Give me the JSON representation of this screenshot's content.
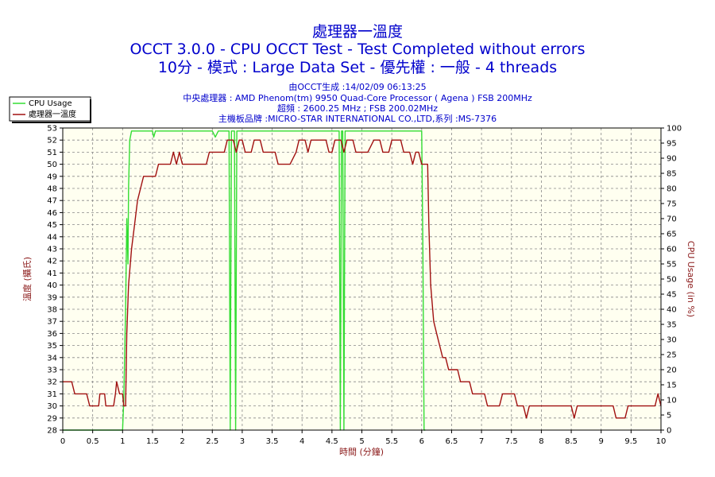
{
  "chart_data": {
    "type": "line",
    "title": "處理器一溫度",
    "subtitle_1": "OCCT 3.0.0 - CPU OCCT Test - Test Completed without errors",
    "subtitle_2": "10分 - 模式 : Large Data Set - 優先權 : 一般 - 4 threads",
    "info_lines": [
      "由OCCT生成 :14/02/09 06:13:25",
      "中央處理器 : AMD Phenom(tm) 9950 Quad-Core Processor ( Agena ) FSB 200MHz",
      "超頻 : 2600.25 MHz ; FSB 200.02MHz",
      "主機板品牌 :MICRO-STAR INTERNATIONAL CO.,LTD,系列 :MS-7376"
    ],
    "xlabel": "時間 (分鐘)",
    "ylabel_left": "溫度 (攝氏)",
    "ylabel_right": "CPU Usage (in %)",
    "xlim": [
      0,
      10
    ],
    "ylim_left": [
      28,
      53
    ],
    "ylim_right": [
      0,
      100
    ],
    "x_ticks": [
      "0",
      "0.5",
      "1",
      "1.5",
      "2",
      "2.5",
      "3",
      "3.5",
      "4",
      "4.5",
      "5",
      "5.5",
      "6",
      "6.5",
      "7",
      "7.5",
      "8",
      "8.5",
      "9",
      "9.5",
      "10"
    ],
    "y_left_ticks": [
      "28",
      "29",
      "30",
      "31",
      "32",
      "33",
      "34",
      "35",
      "36",
      "37",
      "38",
      "39",
      "40",
      "41",
      "42",
      "43",
      "44",
      "45",
      "46",
      "47",
      "48",
      "49",
      "50",
      "51",
      "52",
      "53"
    ],
    "y_right_ticks": [
      "0",
      "5",
      "10",
      "15",
      "20",
      "25",
      "30",
      "35",
      "40",
      "45",
      "50",
      "55",
      "60",
      "65",
      "70",
      "75",
      "80",
      "85",
      "90",
      "95",
      "100"
    ],
    "grid": true,
    "legend_position": "top-left",
    "series": [
      {
        "name": "CPU Usage",
        "axis": "right",
        "color": "#33dd33",
        "points": [
          [
            0,
            0
          ],
          [
            1.0,
            0
          ],
          [
            1.02,
            10
          ],
          [
            1.05,
            40
          ],
          [
            1.07,
            70
          ],
          [
            1.09,
            55
          ],
          [
            1.1,
            80
          ],
          [
            1.12,
            96
          ],
          [
            1.15,
            99
          ],
          [
            1.5,
            99
          ],
          [
            1.52,
            97
          ],
          [
            1.55,
            99
          ],
          [
            2.0,
            99
          ],
          [
            2.5,
            99
          ],
          [
            2.55,
            97
          ],
          [
            2.6,
            99
          ],
          [
            2.78,
            99
          ],
          [
            2.8,
            0
          ],
          [
            2.82,
            99
          ],
          [
            2.87,
            99
          ],
          [
            2.89,
            0
          ],
          [
            2.91,
            99
          ],
          [
            3.5,
            99
          ],
          [
            4.0,
            99
          ],
          [
            4.5,
            99
          ],
          [
            4.62,
            99
          ],
          [
            4.64,
            0
          ],
          [
            4.66,
            99
          ],
          [
            4.68,
            99
          ],
          [
            4.7,
            0
          ],
          [
            4.72,
            99
          ],
          [
            5.5,
            99
          ],
          [
            5.7,
            99
          ],
          [
            6.0,
            99
          ],
          [
            6.02,
            60
          ],
          [
            6.04,
            0
          ],
          [
            6.06,
            0
          ]
        ]
      },
      {
        "name": "處理器一溫度",
        "axis": "left",
        "color": "#a01010",
        "points": [
          [
            0,
            32
          ],
          [
            0.15,
            32
          ],
          [
            0.2,
            31
          ],
          [
            0.4,
            31
          ],
          [
            0.45,
            30
          ],
          [
            0.6,
            30
          ],
          [
            0.62,
            31
          ],
          [
            0.7,
            31
          ],
          [
            0.72,
            30
          ],
          [
            0.85,
            30
          ],
          [
            0.88,
            31
          ],
          [
            0.9,
            32
          ],
          [
            0.95,
            31
          ],
          [
            1.0,
            31
          ],
          [
            1.02,
            30
          ],
          [
            1.05,
            30
          ],
          [
            1.07,
            36
          ],
          [
            1.1,
            40
          ],
          [
            1.15,
            43
          ],
          [
            1.2,
            45
          ],
          [
            1.25,
            47
          ],
          [
            1.3,
            48
          ],
          [
            1.35,
            49
          ],
          [
            1.4,
            49
          ],
          [
            1.45,
            49
          ],
          [
            1.5,
            49
          ],
          [
            1.55,
            49
          ],
          [
            1.6,
            50
          ],
          [
            1.7,
            50
          ],
          [
            1.8,
            50
          ],
          [
            1.85,
            51
          ],
          [
            1.9,
            50
          ],
          [
            1.95,
            51
          ],
          [
            2.0,
            50
          ],
          [
            2.1,
            50
          ],
          [
            2.3,
            50
          ],
          [
            2.4,
            50
          ],
          [
            2.45,
            51
          ],
          [
            2.55,
            51
          ],
          [
            2.7,
            51
          ],
          [
            2.75,
            52
          ],
          [
            2.85,
            52
          ],
          [
            2.9,
            51
          ],
          [
            2.95,
            52
          ],
          [
            3.0,
            52
          ],
          [
            3.05,
            51
          ],
          [
            3.15,
            51
          ],
          [
            3.2,
            52
          ],
          [
            3.3,
            52
          ],
          [
            3.35,
            51
          ],
          [
            3.45,
            51
          ],
          [
            3.5,
            51
          ],
          [
            3.55,
            51
          ],
          [
            3.6,
            50
          ],
          [
            3.8,
            50
          ],
          [
            3.9,
            51
          ],
          [
            3.95,
            52
          ],
          [
            4.05,
            52
          ],
          [
            4.1,
            51
          ],
          [
            4.15,
            52
          ],
          [
            4.4,
            52
          ],
          [
            4.45,
            51
          ],
          [
            4.5,
            51
          ],
          [
            4.55,
            52
          ],
          [
            4.65,
            52
          ],
          [
            4.7,
            51
          ],
          [
            4.75,
            52
          ],
          [
            4.85,
            52
          ],
          [
            4.9,
            51
          ],
          [
            5.0,
            51
          ],
          [
            5.1,
            51
          ],
          [
            5.2,
            52
          ],
          [
            5.3,
            52
          ],
          [
            5.35,
            51
          ],
          [
            5.45,
            51
          ],
          [
            5.5,
            52
          ],
          [
            5.65,
            52
          ],
          [
            5.7,
            51
          ],
          [
            5.8,
            51
          ],
          [
            5.85,
            50
          ],
          [
            5.9,
            51
          ],
          [
            5.95,
            51
          ],
          [
            6.0,
            50
          ],
          [
            6.1,
            50
          ],
          [
            6.12,
            45
          ],
          [
            6.15,
            40
          ],
          [
            6.2,
            37
          ],
          [
            6.25,
            36
          ],
          [
            6.3,
            35
          ],
          [
            6.35,
            34
          ],
          [
            6.4,
            34
          ],
          [
            6.45,
            33
          ],
          [
            6.5,
            33
          ],
          [
            6.6,
            33
          ],
          [
            6.65,
            32
          ],
          [
            6.8,
            32
          ],
          [
            6.85,
            31
          ],
          [
            7.0,
            31
          ],
          [
            7.05,
            31
          ],
          [
            7.1,
            30
          ],
          [
            7.3,
            30
          ],
          [
            7.35,
            31
          ],
          [
            7.5,
            31
          ],
          [
            7.55,
            31
          ],
          [
            7.6,
            30
          ],
          [
            7.7,
            30
          ],
          [
            7.75,
            29
          ],
          [
            7.8,
            30
          ],
          [
            8.0,
            30
          ],
          [
            8.1,
            30
          ],
          [
            8.5,
            30
          ],
          [
            8.55,
            29
          ],
          [
            8.6,
            30
          ],
          [
            8.8,
            30
          ],
          [
            9.2,
            30
          ],
          [
            9.25,
            29
          ],
          [
            9.4,
            29
          ],
          [
            9.45,
            30
          ],
          [
            9.5,
            30
          ],
          [
            9.6,
            30
          ],
          [
            9.9,
            30
          ],
          [
            9.95,
            31
          ],
          [
            10.0,
            30
          ]
        ]
      }
    ]
  }
}
